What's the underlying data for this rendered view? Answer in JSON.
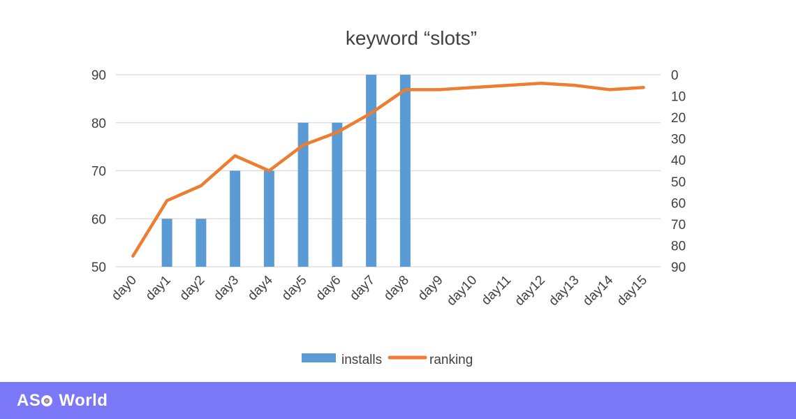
{
  "chart_data": {
    "type": "bar+line",
    "title": "keyword “slots”",
    "categories": [
      "day0",
      "day1",
      "day2",
      "day3",
      "day4",
      "day5",
      "day6",
      "day7",
      "day8",
      "day9",
      "day10",
      "day11",
      "day12",
      "day13",
      "day14",
      "day15"
    ],
    "series": [
      {
        "name": "installs",
        "type": "bar",
        "axis": "left",
        "color": "#5b9bd5",
        "values": [
          null,
          60,
          60,
          70,
          70,
          80,
          80,
          90,
          90,
          null,
          null,
          null,
          null,
          null,
          null,
          null
        ]
      },
      {
        "name": "ranking",
        "type": "line",
        "axis": "right",
        "color": "#ed7d31",
        "values": [
          85,
          59,
          52,
          38,
          45,
          33,
          27,
          18,
          7,
          7,
          6,
          5,
          4,
          5,
          7,
          6
        ]
      }
    ],
    "y_left": {
      "min": 50,
      "max": 90,
      "ticks": [
        50,
        60,
        70,
        80,
        90
      ]
    },
    "y_right": {
      "min": 0,
      "max": 90,
      "inverted": true,
      "ticks": [
        0,
        10,
        20,
        30,
        40,
        50,
        60,
        70,
        80,
        90
      ]
    },
    "grid": true,
    "legend": "bottom"
  },
  "footer": {
    "brand_left": "AS",
    "brand_right": "World",
    "background": "#7b78f8"
  }
}
